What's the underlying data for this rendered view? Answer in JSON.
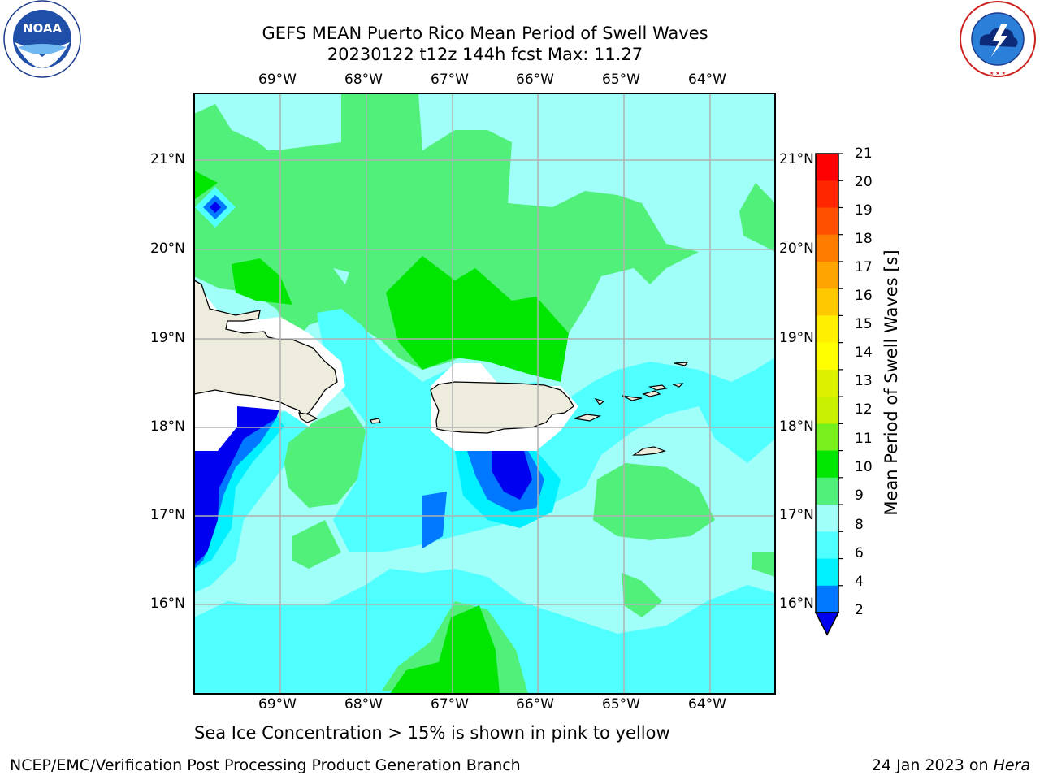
{
  "header": {
    "title_line1": "GEFS MEAN Puerto Rico Mean Period of Swell Waves",
    "title_line2": "20230122 t12z 144h fcst   Max: 11.27"
  },
  "logos": {
    "left": "NOAA",
    "right": "NATIONAL WEATHER SERVICE"
  },
  "axes": {
    "lon_labels": [
      "69°W",
      "68°W",
      "67°W",
      "66°W",
      "65°W",
      "64°W"
    ],
    "lat_labels": [
      "21°N",
      "20°N",
      "19°N",
      "18°N",
      "17°N",
      "16°N"
    ]
  },
  "colorbar": {
    "label": "Mean Period of Swell Waves [s]",
    "ticks": [
      "21",
      "20",
      "19",
      "18",
      "17",
      "16",
      "15",
      "14",
      "13",
      "12",
      "11",
      "10",
      "9",
      "8",
      "6",
      "4",
      "2"
    ],
    "colors": [
      "#ff0000",
      "#ff2600",
      "#ff5000",
      "#ff7c00",
      "#ffa400",
      "#ffc800",
      "#fff000",
      "#ffff00",
      "#dcf000",
      "#c8f000",
      "#78f01e",
      "#00e600",
      "#50f07a",
      "#a0fff8",
      "#50ffff",
      "#00f0ff",
      "#0078ff",
      "#0000f0"
    ],
    "extend_color": "#0000f0"
  },
  "notes": {
    "sea_ice": "Sea Ice Concentration > 15% is shown in pink to yellow"
  },
  "footer": {
    "left": "NCEP/EMC/Verification Post Processing Product Generation Branch",
    "right_prefix": "24 Jan 2023 on ",
    "right_host": "Hera"
  },
  "palette": {
    "green_10_11": "#00e600",
    "green_9_10": "#50f07a",
    "cyan_8_9": "#a0fff8",
    "cyan_6_8": "#50ffff",
    "cyan_4_6": "#00f0ff",
    "blue_2_4": "#0078ff",
    "blue_lt2": "#0000f0",
    "land": "#eeecdc"
  }
}
